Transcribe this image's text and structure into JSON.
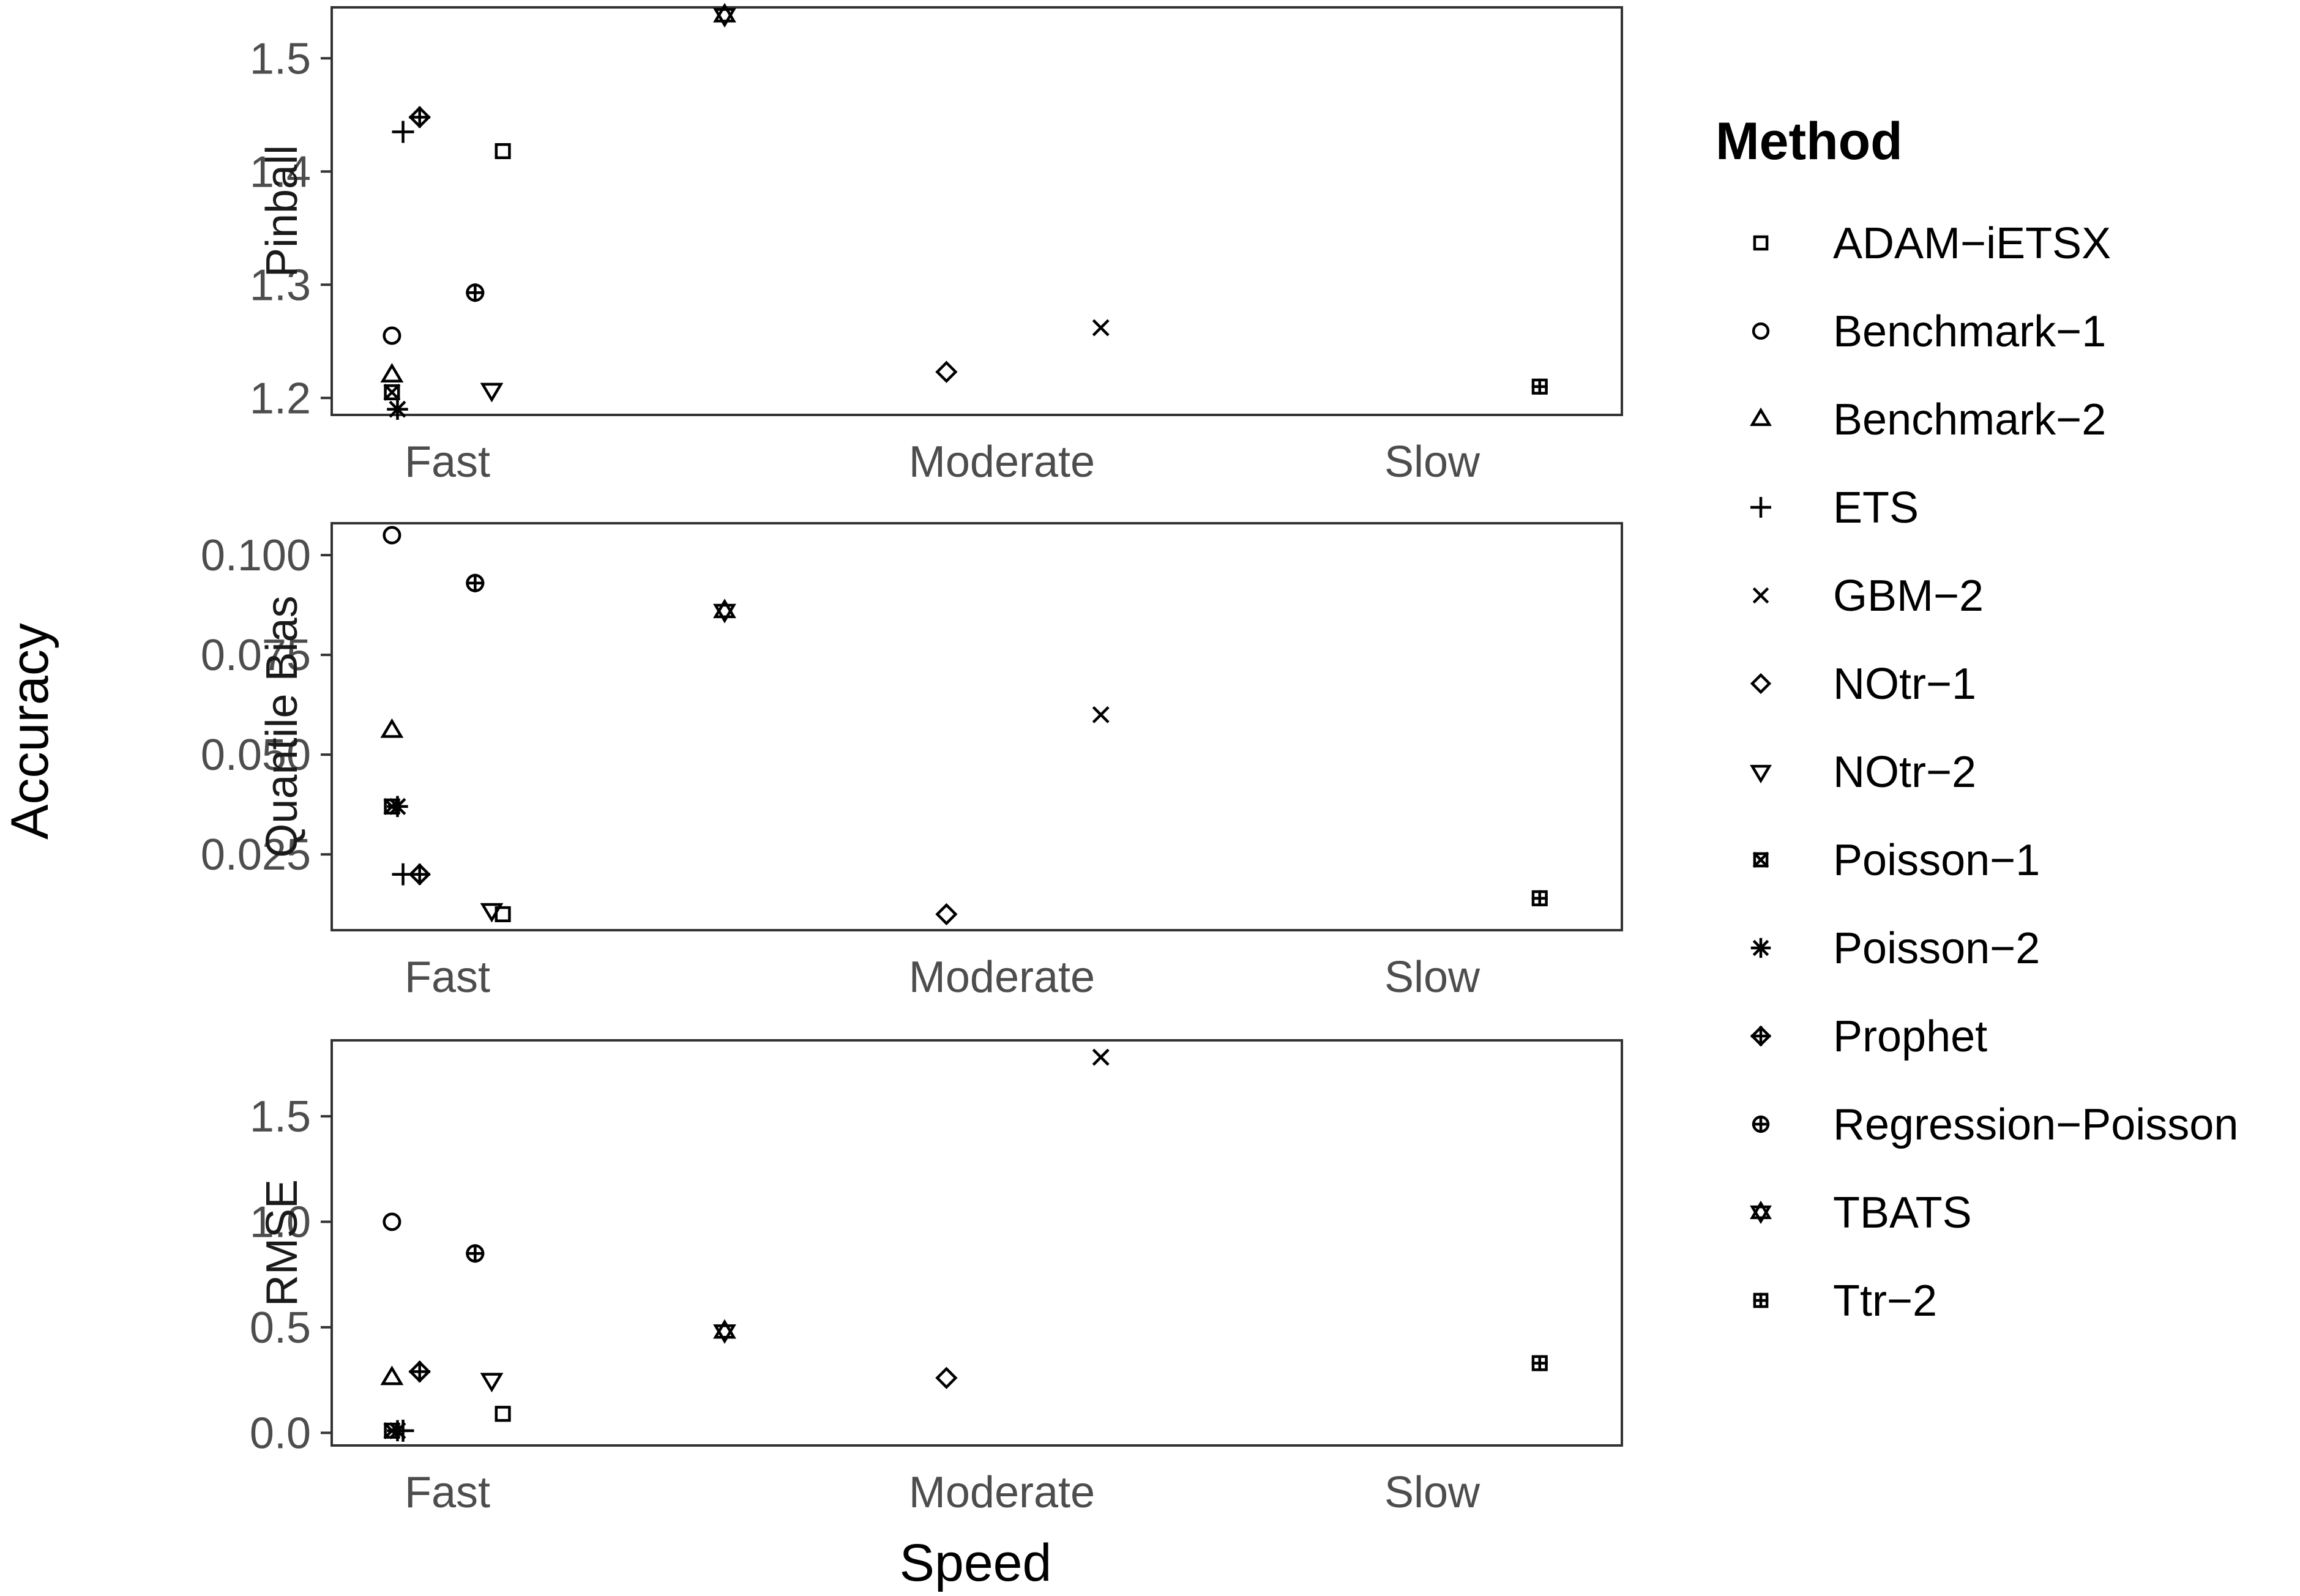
{
  "chart_data": {
    "type": "scatter",
    "xlabel": "Speed",
    "ylabel": "Accuracy",
    "x_categories": [
      "Fast",
      "Moderate",
      "Slow"
    ],
    "legend": {
      "title": "Method",
      "position": "right",
      "entries": [
        {
          "name": "ADAM−iETSX",
          "shape": "square"
        },
        {
          "name": "Benchmark−1",
          "shape": "circle"
        },
        {
          "name": "Benchmark−2",
          "shape": "triangle-up"
        },
        {
          "name": "ETS",
          "shape": "plus"
        },
        {
          "name": "GBM−2",
          "shape": "cross"
        },
        {
          "name": "NOtr−1",
          "shape": "diamond"
        },
        {
          "name": "NOtr−2",
          "shape": "triangle-down"
        },
        {
          "name": "Poisson−1",
          "shape": "square-cross"
        },
        {
          "name": "Poisson−2",
          "shape": "asterisk"
        },
        {
          "name": "Prophet",
          "shape": "diamond-plus"
        },
        {
          "name": "Regression−Poisson",
          "shape": "circle-plus"
        },
        {
          "name": "TBATS",
          "shape": "star-of-david"
        },
        {
          "name": "Ttr−2",
          "shape": "square-plus"
        }
      ]
    },
    "x_position_note_units": "category index (Fast=1, Moderate=2, Slow=3)",
    "panels": [
      {
        "strip": "Pinball",
        "ylim": [
          1.185,
          1.545
        ],
        "yticks": [
          1.2,
          1.3,
          1.4,
          1.5
        ],
        "ytick_labels": [
          "1.2",
          "1.3",
          "1.4",
          "1.5"
        ],
        "points": [
          {
            "method": 0,
            "x": 1.1,
            "y": 1.418
          },
          {
            "method": 1,
            "x": 0.9,
            "y": 1.255
          },
          {
            "method": 2,
            "x": 0.9,
            "y": 1.22
          },
          {
            "method": 3,
            "x": 0.92,
            "y": 1.435
          },
          {
            "method": 4,
            "x": 2.23,
            "y": 1.262
          },
          {
            "method": 5,
            "x": 1.9,
            "y": 1.223
          },
          {
            "method": 6,
            "x": 1.08,
            "y": 1.207
          },
          {
            "method": 7,
            "x": 0.9,
            "y": 1.205
          },
          {
            "method": 8,
            "x": 0.91,
            "y": 1.19
          },
          {
            "method": 9,
            "x": 0.95,
            "y": 1.448
          },
          {
            "method": 10,
            "x": 1.05,
            "y": 1.293
          },
          {
            "method": 11,
            "x": 1.5,
            "y": 1.538
          },
          {
            "method": 12,
            "x": 3.25,
            "y": 1.21
          }
        ]
      },
      {
        "strip": "Quantile Bias",
        "ylim": [
          0.006,
          0.108
        ],
        "yticks": [
          0.025,
          0.05,
          0.075,
          0.1
        ],
        "ytick_labels": [
          "0.025",
          "0.050",
          "0.075",
          "0.100"
        ],
        "points": [
          {
            "method": 0,
            "x": 1.1,
            "y": 0.01
          },
          {
            "method": 1,
            "x": 0.9,
            "y": 0.105
          },
          {
            "method": 2,
            "x": 0.9,
            "y": 0.056
          },
          {
            "method": 3,
            "x": 0.92,
            "y": 0.02
          },
          {
            "method": 4,
            "x": 2.23,
            "y": 0.06
          },
          {
            "method": 5,
            "x": 1.9,
            "y": 0.01
          },
          {
            "method": 6,
            "x": 1.08,
            "y": 0.011
          },
          {
            "method": 7,
            "x": 0.9,
            "y": 0.037
          },
          {
            "method": 8,
            "x": 0.91,
            "y": 0.037
          },
          {
            "method": 9,
            "x": 0.95,
            "y": 0.02
          },
          {
            "method": 10,
            "x": 1.05,
            "y": 0.093
          },
          {
            "method": 11,
            "x": 1.5,
            "y": 0.086
          },
          {
            "method": 12,
            "x": 3.25,
            "y": 0.014
          }
        ]
      },
      {
        "strip": "RMSE",
        "ylim": [
          -0.06,
          1.86
        ],
        "yticks": [
          0.0,
          0.5,
          1.0,
          1.5
        ],
        "ytick_labels": [
          "0.0",
          "0.5",
          "1.0",
          "1.5"
        ],
        "points": [
          {
            "method": 0,
            "x": 1.1,
            "y": 0.09
          },
          {
            "method": 1,
            "x": 0.9,
            "y": 1.0
          },
          {
            "method": 2,
            "x": 0.9,
            "y": 0.26
          },
          {
            "method": 3,
            "x": 0.92,
            "y": 0.01
          },
          {
            "method": 4,
            "x": 2.23,
            "y": 1.78
          },
          {
            "method": 5,
            "x": 1.9,
            "y": 0.26
          },
          {
            "method": 6,
            "x": 1.08,
            "y": 0.25
          },
          {
            "method": 7,
            "x": 0.9,
            "y": 0.01
          },
          {
            "method": 8,
            "x": 0.91,
            "y": 0.01
          },
          {
            "method": 9,
            "x": 0.95,
            "y": 0.29
          },
          {
            "method": 10,
            "x": 1.05,
            "y": 0.85
          },
          {
            "method": 11,
            "x": 1.5,
            "y": 0.48
          },
          {
            "method": 12,
            "x": 3.25,
            "y": 0.33
          }
        ]
      }
    ]
  }
}
